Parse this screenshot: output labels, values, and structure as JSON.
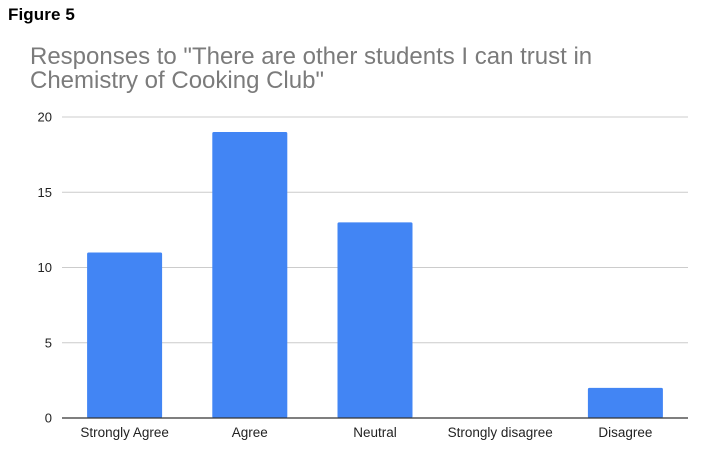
{
  "figure_label": "Figure 5",
  "chart_data": {
    "type": "bar",
    "title": "Responses to \"There are other students I can trust in Chemistry of Cooking Club\"",
    "categories": [
      "Strongly Agree",
      "Agree",
      "Neutral",
      "Strongly disagree",
      "Disagree"
    ],
    "values": [
      11,
      19,
      13,
      0,
      2
    ],
    "xlabel": "",
    "ylabel": "",
    "ylim": [
      0,
      20
    ],
    "yticks": [
      0,
      5,
      10,
      15,
      20
    ],
    "grid": true,
    "legend": "none",
    "bar_color": "#4285f4",
    "grid_color": "#cccccc",
    "axis_color": "#333333"
  }
}
